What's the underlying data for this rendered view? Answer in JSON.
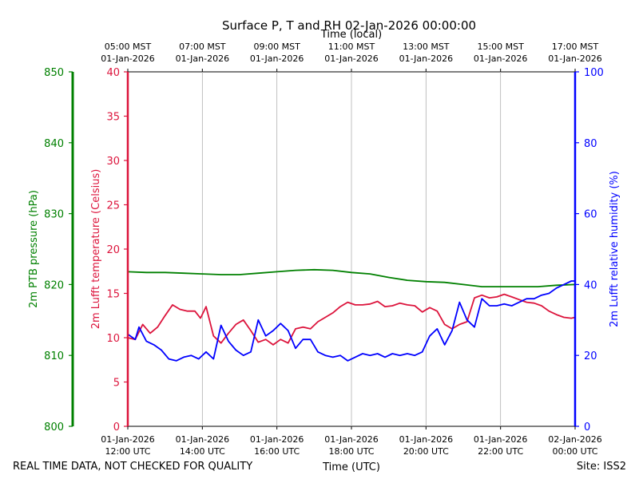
{
  "chart_data": {
    "type": "line",
    "title": "Surface P, T and RH 02-Jan-2026 00:00:00",
    "xlabel_bottom": "Time (UTC)",
    "xlabel_top": "Time (local)",
    "x_range_utc_hours": [
      12,
      24
    ],
    "bottom_ticks": [
      {
        "x": 12,
        "line1": "01-Jan-2026",
        "line2": "12:00 UTC"
      },
      {
        "x": 14,
        "line1": "01-Jan-2026",
        "line2": "14:00 UTC"
      },
      {
        "x": 16,
        "line1": "01-Jan-2026",
        "line2": "16:00 UTC"
      },
      {
        "x": 18,
        "line1": "01-Jan-2026",
        "line2": "18:00 UTC"
      },
      {
        "x": 20,
        "line1": "01-Jan-2026",
        "line2": "20:00 UTC"
      },
      {
        "x": 22,
        "line1": "01-Jan-2026",
        "line2": "22:00 UTC"
      },
      {
        "x": 24,
        "line1": "02-Jan-2026",
        "line2": "00:00 UTC"
      }
    ],
    "top_ticks": [
      {
        "x": 12,
        "line1": "05:00 MST",
        "line2": "01-Jan-2026"
      },
      {
        "x": 14,
        "line1": "07:00 MST",
        "line2": "01-Jan-2026"
      },
      {
        "x": 16,
        "line1": "09:00 MST",
        "line2": "01-Jan-2026"
      },
      {
        "x": 18,
        "line1": "11:00 MST",
        "line2": "01-Jan-2026"
      },
      {
        "x": 20,
        "line1": "13:00 MST",
        "line2": "01-Jan-2026"
      },
      {
        "x": 22,
        "line1": "15:00 MST",
        "line2": "01-Jan-2026"
      },
      {
        "x": 24,
        "line1": "17:00 MST",
        "line2": "01-Jan-2026"
      }
    ],
    "grid": "vertical",
    "axes": {
      "pressure": {
        "label": "2m PTB pressure (hPa)",
        "ylim": [
          800,
          850
        ],
        "ticks": [
          800,
          810,
          820,
          830,
          840,
          850
        ],
        "color": "#008000"
      },
      "temperature": {
        "label": "2m Lufft temperature (Celsius)",
        "ylim": [
          0,
          40
        ],
        "ticks": [
          0,
          5,
          10,
          15,
          20,
          25,
          30,
          35,
          40
        ],
        "color": "#dc143c"
      },
      "humidity": {
        "label": "2m Lufft relative humidity (%)",
        "ylim": [
          0,
          100
        ],
        "ticks": [
          0,
          20,
          40,
          60,
          80,
          100
        ],
        "color": "#0000ff"
      }
    },
    "series": [
      {
        "axis": "pressure",
        "color": "#008000",
        "x": [
          12.0,
          12.5,
          13.0,
          13.5,
          14.0,
          14.5,
          15.0,
          15.5,
          16.0,
          16.5,
          17.0,
          17.5,
          18.0,
          18.5,
          19.0,
          19.5,
          20.0,
          20.5,
          21.0,
          21.5,
          22.0,
          22.5,
          23.0,
          23.5,
          24.0
        ],
        "y": [
          821.8,
          821.7,
          821.7,
          821.6,
          821.5,
          821.4,
          821.4,
          821.6,
          821.8,
          822.0,
          822.1,
          822.0,
          821.7,
          821.5,
          821.0,
          820.6,
          820.4,
          820.3,
          820.0,
          819.7,
          819.7,
          819.7,
          819.7,
          819.9,
          820.0
        ]
      },
      {
        "axis": "temperature",
        "color": "#dc143c",
        "x": [
          12.0,
          12.2,
          12.4,
          12.6,
          12.8,
          13.0,
          13.2,
          13.4,
          13.6,
          13.8,
          13.95,
          14.1,
          14.3,
          14.5,
          14.7,
          14.9,
          15.1,
          15.3,
          15.5,
          15.7,
          15.9,
          16.1,
          16.3,
          16.5,
          16.7,
          16.9,
          17.1,
          17.3,
          17.5,
          17.7,
          17.9,
          18.1,
          18.3,
          18.5,
          18.7,
          18.9,
          19.1,
          19.3,
          19.5,
          19.7,
          19.9,
          20.1,
          20.3,
          20.5,
          20.7,
          20.9,
          21.1,
          21.3,
          21.5,
          21.7,
          21.9,
          22.1,
          22.3,
          22.5,
          22.7,
          22.9,
          23.1,
          23.3,
          23.5,
          23.7,
          23.9,
          24.0
        ],
        "y": [
          10.0,
          9.8,
          11.5,
          10.5,
          11.2,
          12.5,
          13.7,
          13.2,
          13.0,
          13.0,
          12.2,
          13.5,
          10.2,
          9.4,
          10.5,
          11.5,
          12.0,
          10.8,
          9.5,
          9.8,
          9.2,
          9.8,
          9.4,
          11.0,
          11.2,
          11.0,
          11.8,
          12.3,
          12.8,
          13.5,
          14.0,
          13.7,
          13.7,
          13.8,
          14.1,
          13.5,
          13.6,
          13.9,
          13.7,
          13.6,
          12.9,
          13.4,
          13.0,
          11.5,
          11.0,
          11.5,
          11.8,
          14.5,
          14.8,
          14.5,
          14.6,
          14.9,
          14.6,
          14.3,
          14.0,
          13.9,
          13.6,
          13.0,
          12.6,
          12.3,
          12.2,
          12.3
        ]
      },
      {
        "axis": "humidity",
        "color": "#0000ff",
        "x": [
          12.0,
          12.2,
          12.3,
          12.5,
          12.7,
          12.9,
          13.1,
          13.3,
          13.5,
          13.7,
          13.9,
          14.1,
          14.3,
          14.5,
          14.7,
          14.9,
          15.1,
          15.3,
          15.5,
          15.7,
          15.9,
          16.1,
          16.3,
          16.5,
          16.7,
          16.9,
          17.1,
          17.3,
          17.5,
          17.7,
          17.9,
          18.1,
          18.3,
          18.5,
          18.7,
          18.9,
          19.1,
          19.3,
          19.5,
          19.7,
          19.9,
          20.1,
          20.3,
          20.5,
          20.7,
          20.9,
          21.1,
          21.3,
          21.5,
          21.7,
          21.9,
          22.1,
          22.3,
          22.5,
          22.7,
          22.9,
          23.1,
          23.3,
          23.5,
          23.7,
          23.9,
          24.0
        ],
        "y": [
          26.0,
          24.5,
          28.0,
          24.0,
          23.0,
          21.5,
          19.0,
          18.5,
          19.5,
          20.0,
          19.0,
          21.0,
          19.0,
          28.5,
          24.0,
          21.5,
          20.0,
          21.0,
          30.0,
          25.5,
          27.0,
          29.0,
          27.0,
          22.0,
          24.5,
          24.5,
          21.0,
          20.0,
          19.5,
          20.0,
          18.5,
          19.5,
          20.5,
          20.0,
          20.5,
          19.5,
          20.5,
          20.0,
          20.5,
          20.0,
          21.0,
          25.5,
          27.5,
          23.0,
          27.0,
          35.0,
          30.0,
          28.0,
          36.0,
          34.0,
          34.0,
          34.5,
          34.0,
          35.0,
          36.0,
          36.0,
          37.0,
          37.5,
          39.0,
          40.0,
          41.0,
          41.0
        ]
      }
    ]
  },
  "footer": {
    "left_note": "REAL TIME DATA, NOT CHECKED FOR QUALITY",
    "site": "Site: ISS2"
  }
}
